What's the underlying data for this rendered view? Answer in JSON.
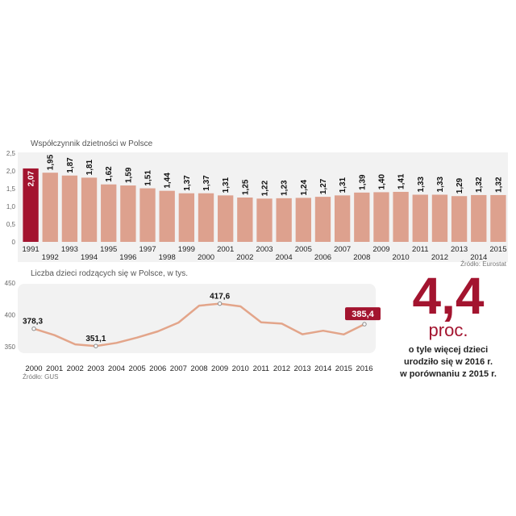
{
  "colors": {
    "bar": "#dda18e",
    "bar_highlight": "#a3142f",
    "line": "#e3a58a",
    "accent": "#a3142f",
    "panel_bg": "#f2f2f2"
  },
  "chart_data": [
    {
      "type": "bar",
      "title": "Współczynnik dzietności w Polsce",
      "categories": [
        "1991",
        "1992",
        "1993",
        "1994",
        "1995",
        "1996",
        "1997",
        "1998",
        "1999",
        "2000",
        "2001",
        "2002",
        "2003",
        "2004",
        "2005",
        "2006",
        "2007",
        "2008",
        "2009",
        "2010",
        "2011",
        "2012",
        "2013",
        "2014",
        "2015"
      ],
      "values": [
        2.07,
        1.95,
        1.87,
        1.81,
        1.62,
        1.59,
        1.51,
        1.44,
        1.37,
        1.37,
        1.31,
        1.25,
        1.22,
        1.23,
        1.24,
        1.27,
        1.31,
        1.39,
        1.4,
        1.41,
        1.33,
        1.33,
        1.29,
        1.32,
        1.32
      ],
      "value_labels": [
        "2,07",
        "1,95",
        "1,87",
        "1,81",
        "1,62",
        "1,59",
        "1,51",
        "1,44",
        "1,37",
        "1,37",
        "1,31",
        "1,25",
        "1,22",
        "1,23",
        "1,24",
        "1,27",
        "1,31",
        "1,39",
        "1,40",
        "1,41",
        "1,33",
        "1,33",
        "1,29",
        "1,32",
        "1,32"
      ],
      "highlight_index": 0,
      "ylim": [
        0,
        2.5
      ],
      "yticks": [
        0,
        0.5,
        1.0,
        1.5,
        2.0,
        2.5
      ],
      "ytick_labels": [
        "0",
        "0,5",
        "1,0",
        "1,5",
        "2,0",
        "2,5"
      ],
      "source": "Źródło: Eurostat"
    },
    {
      "type": "line",
      "title": "Liczba dzieci rodzących się w Polsce, w tys.",
      "categories": [
        "2000",
        "2001",
        "2002",
        "2003",
        "2004",
        "2005",
        "2006",
        "2007",
        "2008",
        "2009",
        "2010",
        "2011",
        "2012",
        "2013",
        "2014",
        "2015",
        "2016"
      ],
      "values": [
        378.3,
        368.2,
        353.8,
        351.1,
        356.1,
        364.4,
        374.2,
        387.9,
        414.5,
        417.6,
        413.3,
        388.4,
        386.3,
        369.6,
        375.2,
        369.3,
        385.4
      ],
      "labeled_points": [
        {
          "index": 0,
          "label": "378,3"
        },
        {
          "index": 3,
          "label": "351,1"
        },
        {
          "index": 9,
          "label": "417,6"
        },
        {
          "index": 16,
          "label": "385,4",
          "highlight": true
        }
      ],
      "ylim": [
        340,
        450
      ],
      "yticks": [
        350,
        400,
        450
      ],
      "ytick_labels": [
        "350",
        "400",
        "450"
      ],
      "source": "Źródło: GUS"
    }
  ],
  "callout": {
    "value": "4,4",
    "unit": "proc.",
    "lines": [
      "o tyle więcej dzieci",
      "urodziło się w 2016 r.",
      "w porównaniu z 2015 r."
    ]
  }
}
